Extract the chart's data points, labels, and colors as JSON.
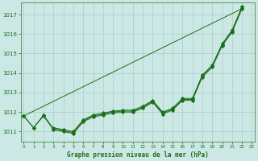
{
  "xlabel": "Graphe pression niveau de la mer (hPa)",
  "x": [
    0,
    1,
    2,
    3,
    4,
    5,
    6,
    7,
    8,
    9,
    10,
    11,
    12,
    13,
    14,
    15,
    16,
    17,
    18,
    19,
    20,
    21,
    22,
    23
  ],
  "line1": [
    1011.8,
    1011.2,
    1011.8,
    1011.1,
    1011.0,
    1010.9,
    1011.5,
    1011.75,
    1011.85,
    1011.95,
    1012.0,
    1012.0,
    1012.2,
    1012.5,
    1011.9,
    1012.1,
    1012.6,
    1012.6,
    1013.8,
    1014.3,
    1015.4,
    1016.1,
    1017.3,
    null
  ],
  "line2": [
    1011.8,
    1011.2,
    1011.85,
    1011.15,
    1011.05,
    1010.95,
    1011.55,
    1011.8,
    1011.9,
    1012.0,
    1012.05,
    1012.05,
    1012.25,
    1012.55,
    1011.95,
    1012.15,
    1012.65,
    1012.65,
    1013.85,
    1014.35,
    1015.45,
    1016.15,
    1017.35,
    null
  ],
  "line3": [
    1011.8,
    null,
    null,
    1011.2,
    1011.1,
    1011.0,
    1011.6,
    1011.85,
    1011.95,
    1012.05,
    1012.1,
    1012.1,
    1012.3,
    1012.6,
    1012.0,
    1012.2,
    1012.7,
    1012.7,
    1013.9,
    1014.4,
    1015.5,
    1016.2,
    1017.4,
    null
  ],
  "line_straight_y0": 1011.8,
  "line_straight_y1": 1017.3,
  "bg_color": "#cce8e4",
  "line_color": "#1a6e1a",
  "grid_color": "#aaccc8",
  "tick_label_color": "#1a6e1a",
  "xlabel_color": "#1a6e1a",
  "ylim": [
    1010.5,
    1017.6
  ],
  "yticks": [
    1011,
    1012,
    1013,
    1014,
    1015,
    1016,
    1017
  ],
  "xticks": [
    0,
    1,
    2,
    3,
    4,
    5,
    6,
    7,
    8,
    9,
    10,
    11,
    12,
    13,
    14,
    15,
    16,
    17,
    18,
    19,
    20,
    21,
    22,
    23
  ],
  "xlim": [
    -0.3,
    23.3
  ]
}
